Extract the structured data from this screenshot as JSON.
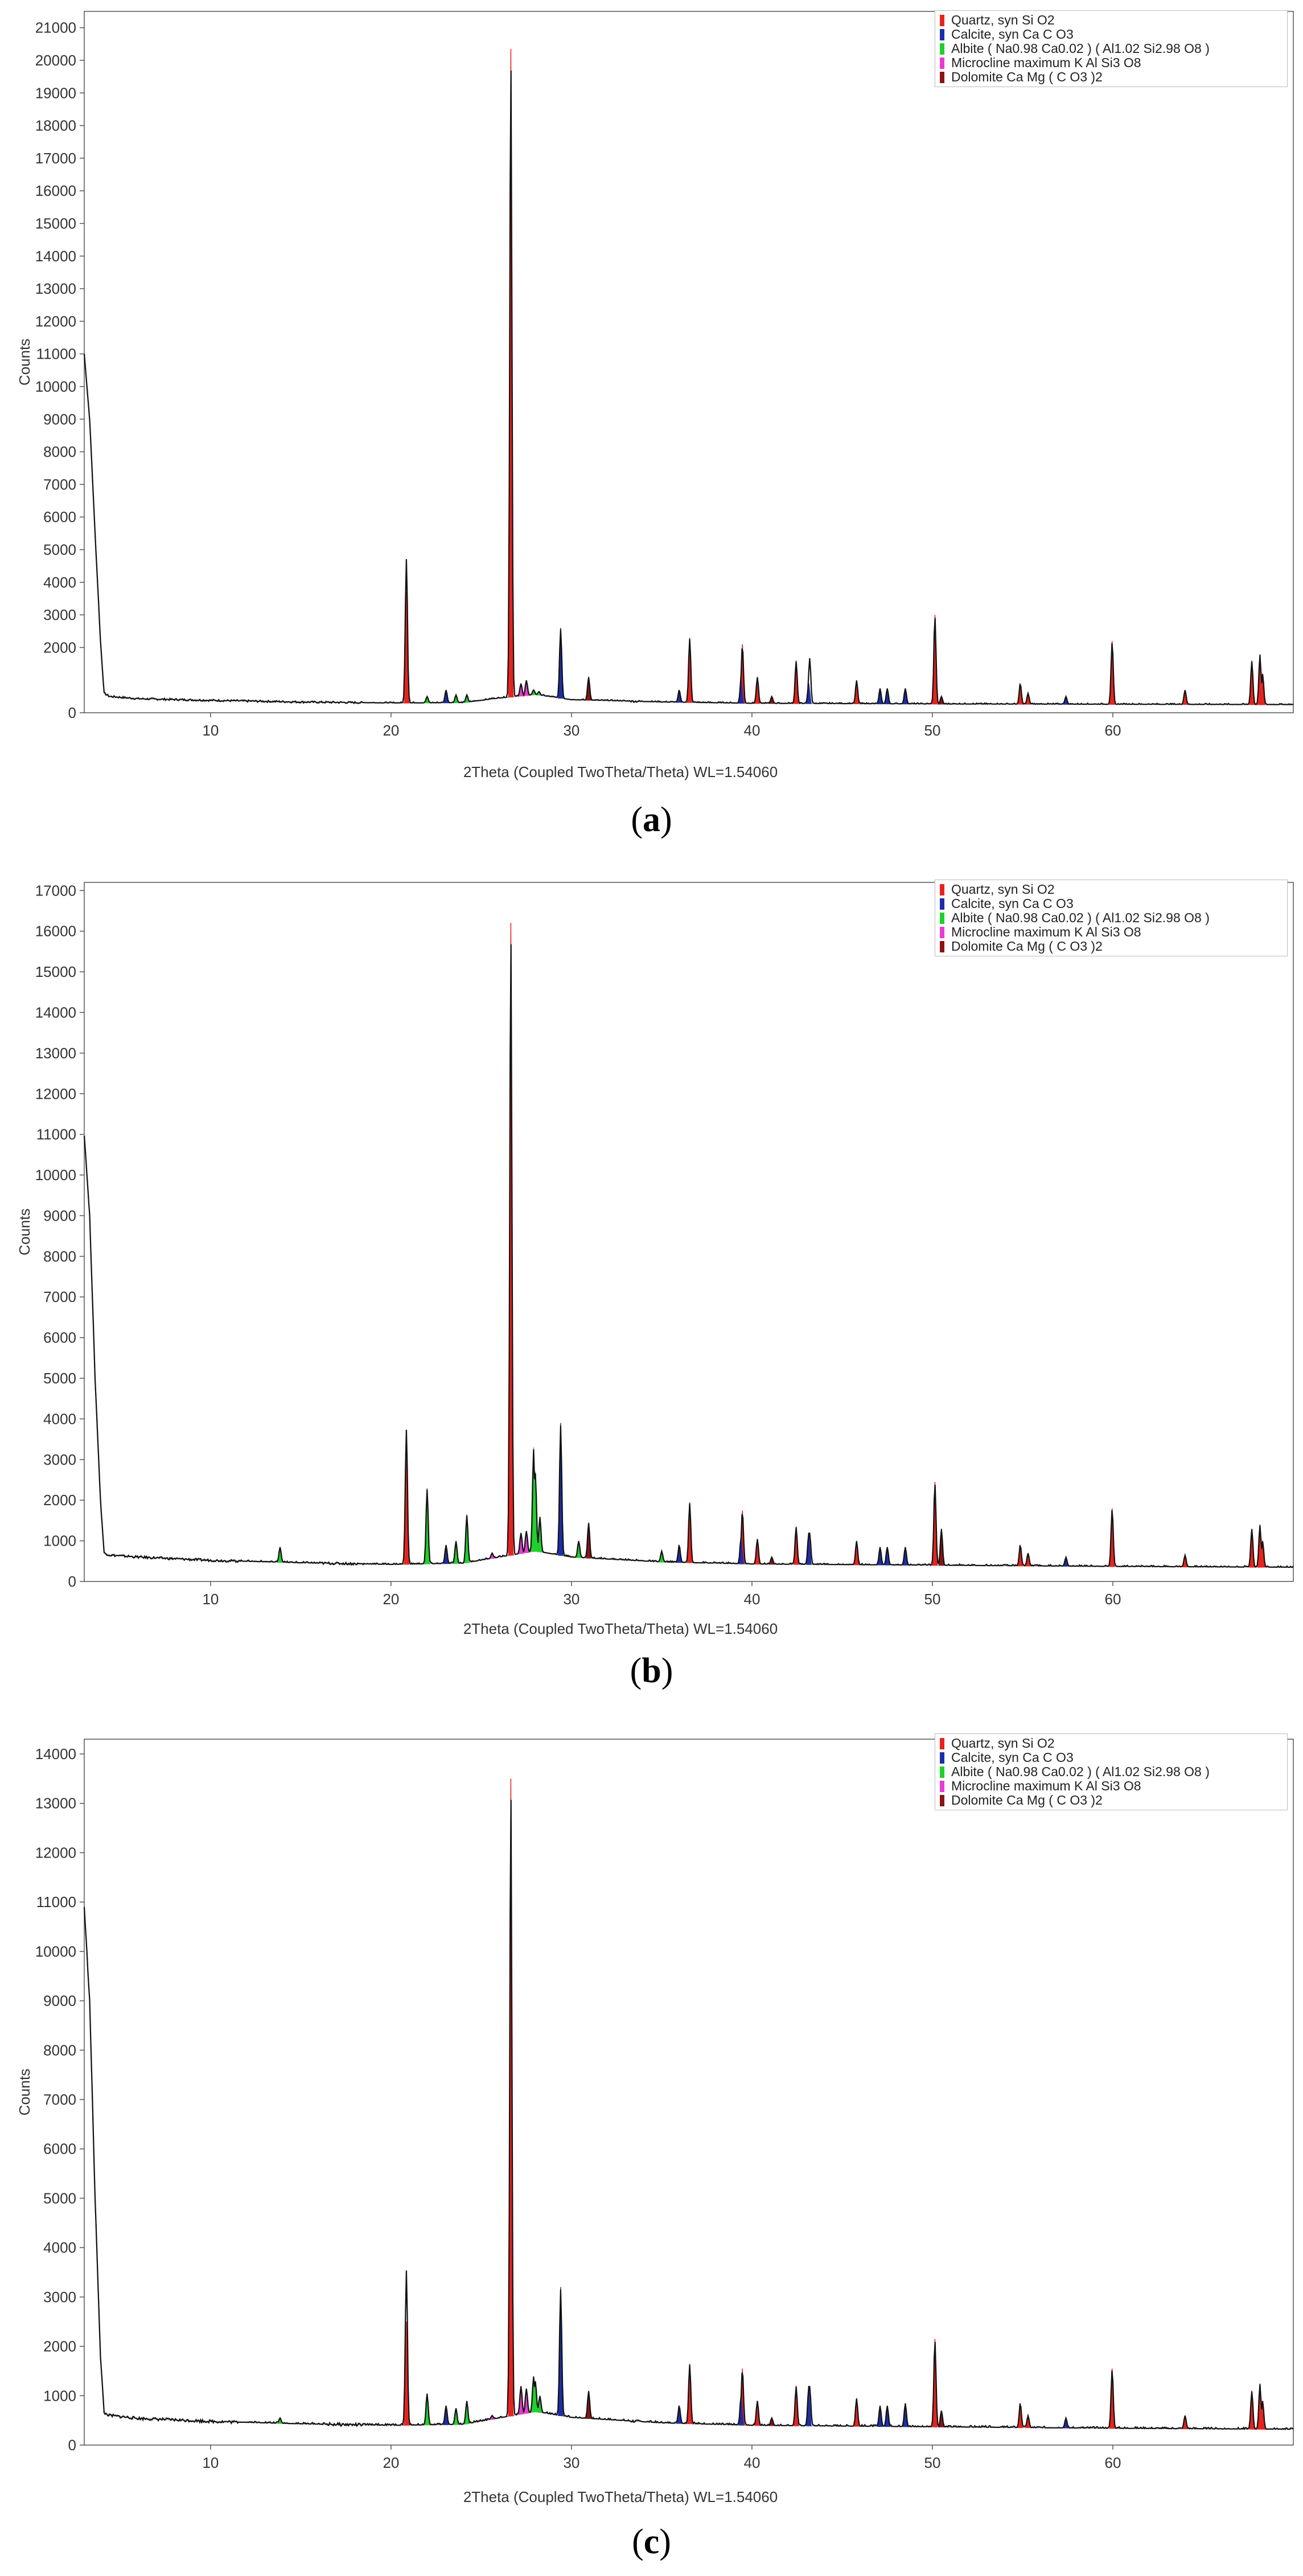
{
  "chart_data": [
    {
      "type": "line",
      "caption": "a",
      "xlabel": "2Theta (Coupled TwoTheta/Theta) WL=1.54060",
      "ylabel": "Counts",
      "xlim": [
        3,
        70
      ],
      "ylim": [
        0,
        21500
      ],
      "xticks": [
        10,
        20,
        30,
        40,
        50,
        60
      ],
      "yticks": [
        0,
        2000,
        3000,
        4000,
        5000,
        6000,
        7000,
        8000,
        9000,
        10000,
        11000,
        12000,
        13000,
        14000,
        15000,
        16000,
        17000,
        18000,
        19000,
        20000,
        21000
      ],
      "legend": {
        "position": "top-right",
        "entries": [
          {
            "name": "Quartz, syn  Si O2",
            "color": "#e8231f"
          },
          {
            "name": "Calcite, syn  Ca C O3",
            "color": "#1d2ea8"
          },
          {
            "name": "Albite  ( Na0.98 Ca0.02 ) ( Al1.02 Si2.98 O8 )",
            "color": "#1fd12c"
          },
          {
            "name": "Microcline maximum  K Al Si3 O8",
            "color": "#e83cd0"
          },
          {
            "name": "Dolomite  Ca Mg ( C O3 )2",
            "color": "#8b1414"
          }
        ]
      },
      "background": [
        [
          3,
          11000
        ],
        [
          3.3,
          9000
        ],
        [
          3.6,
          5500
        ],
        [
          3.9,
          2200
        ],
        [
          4.1,
          600
        ],
        [
          4.4,
          500
        ],
        [
          6,
          430
        ],
        [
          10,
          380
        ],
        [
          15,
          330
        ],
        [
          20,
          300
        ],
        [
          24,
          310
        ],
        [
          26,
          450
        ],
        [
          28,
          560
        ],
        [
          30,
          400
        ],
        [
          35,
          330
        ],
        [
          40,
          290
        ],
        [
          50,
          270
        ],
        [
          60,
          260
        ],
        [
          70,
          250
        ]
      ],
      "total": [
        [
          20.85,
          4800
        ],
        [
          26.64,
          20300
        ],
        [
          29.4,
          2600
        ],
        [
          43.2,
          1700
        ]
      ],
      "peaks": [
        {
          "phase": 0,
          "x": 20.86,
          "y": 3700
        },
        {
          "phase": 0,
          "x": 26.64,
          "y": 20350
        },
        {
          "phase": 0,
          "x": 36.55,
          "y": 2300
        },
        {
          "phase": 0,
          "x": 39.47,
          "y": 2100
        },
        {
          "phase": 0,
          "x": 40.3,
          "y": 1100
        },
        {
          "phase": 0,
          "x": 42.45,
          "y": 1600
        },
        {
          "phase": 0,
          "x": 45.8,
          "y": 1000
        },
        {
          "phase": 0,
          "x": 50.14,
          "y": 3000
        },
        {
          "phase": 0,
          "x": 54.87,
          "y": 900
        },
        {
          "phase": 0,
          "x": 55.3,
          "y": 600
        },
        {
          "phase": 0,
          "x": 59.96,
          "y": 2200
        },
        {
          "phase": 0,
          "x": 64.0,
          "y": 700
        },
        {
          "phase": 0,
          "x": 67.7,
          "y": 1600
        },
        {
          "phase": 0,
          "x": 68.15,
          "y": 1800
        },
        {
          "phase": 0,
          "x": 68.3,
          "y": 1200
        },
        {
          "phase": 1,
          "x": 23.05,
          "y": 700
        },
        {
          "phase": 1,
          "x": 29.4,
          "y": 2600
        },
        {
          "phase": 1,
          "x": 35.97,
          "y": 700
        },
        {
          "phase": 1,
          "x": 39.4,
          "y": 1000
        },
        {
          "phase": 1,
          "x": 43.15,
          "y": 900
        },
        {
          "phase": 1,
          "x": 47.1,
          "y": 750
        },
        {
          "phase": 1,
          "x": 47.5,
          "y": 750
        },
        {
          "phase": 1,
          "x": 48.5,
          "y": 750
        },
        {
          "phase": 1,
          "x": 57.4,
          "y": 500
        },
        {
          "phase": 2,
          "x": 22.0,
          "y": 500
        },
        {
          "phase": 2,
          "x": 23.6,
          "y": 550
        },
        {
          "phase": 2,
          "x": 24.2,
          "y": 550
        },
        {
          "phase": 2,
          "x": 27.9,
          "y": 700
        },
        {
          "phase": 2,
          "x": 28.2,
          "y": 650
        },
        {
          "phase": 3,
          "x": 25.6,
          "y": 450
        },
        {
          "phase": 3,
          "x": 27.2,
          "y": 900
        },
        {
          "phase": 3,
          "x": 27.5,
          "y": 1000
        },
        {
          "phase": 4,
          "x": 30.95,
          "y": 1100
        },
        {
          "phase": 4,
          "x": 41.1,
          "y": 500
        },
        {
          "phase": 4,
          "x": 50.5,
          "y": 500
        }
      ]
    },
    {
      "type": "line",
      "caption": "b",
      "xlabel": "2Theta (Coupled TwoTheta/Theta) WL=1.54060",
      "ylabel": "Counts",
      "xlim": [
        3,
        70
      ],
      "ylim": [
        0,
        17200
      ],
      "xticks": [
        10,
        20,
        30,
        40,
        50,
        60
      ],
      "yticks": [
        0,
        1000,
        2000,
        3000,
        4000,
        5000,
        6000,
        7000,
        8000,
        9000,
        10000,
        11000,
        12000,
        13000,
        14000,
        15000,
        16000,
        17000
      ],
      "legend": {
        "position": "top-right",
        "entries": [
          {
            "name": "Quartz, syn  Si O2",
            "color": "#e8231f"
          },
          {
            "name": "Calcite, syn  Ca C O3",
            "color": "#1d2ea8"
          },
          {
            "name": "Albite  ( Na0.98 Ca0.02 ) ( Al1.02 Si2.98 O8 )",
            "color": "#1fd12c"
          },
          {
            "name": "Microcline maximum  K Al Si3 O8",
            "color": "#e83cd0"
          },
          {
            "name": "Dolomite  Ca Mg ( C O3 )2",
            "color": "#8b1414"
          }
        ]
      },
      "background": [
        [
          3,
          11000
        ],
        [
          3.3,
          9000
        ],
        [
          3.6,
          5000
        ],
        [
          3.9,
          2000
        ],
        [
          4.1,
          700
        ],
        [
          4.4,
          650
        ],
        [
          6,
          600
        ],
        [
          10,
          520
        ],
        [
          15,
          460
        ],
        [
          20,
          420
        ],
        [
          24,
          450
        ],
        [
          26,
          600
        ],
        [
          28,
          750
        ],
        [
          30,
          600
        ],
        [
          35,
          480
        ],
        [
          40,
          430
        ],
        [
          50,
          400
        ],
        [
          60,
          370
        ],
        [
          70,
          350
        ]
      ],
      "total": [
        [
          20.85,
          3800
        ],
        [
          26.64,
          16200
        ],
        [
          29.4,
          3900
        ],
        [
          43.2,
          1200
        ]
      ],
      "peaks": [
        {
          "phase": 0,
          "x": 20.86,
          "y": 3000
        },
        {
          "phase": 0,
          "x": 26.64,
          "y": 16200
        },
        {
          "phase": 0,
          "x": 36.55,
          "y": 1950
        },
        {
          "phase": 0,
          "x": 39.47,
          "y": 1750
        },
        {
          "phase": 0,
          "x": 40.3,
          "y": 1050
        },
        {
          "phase": 0,
          "x": 42.45,
          "y": 1350
        },
        {
          "phase": 0,
          "x": 45.8,
          "y": 1000
        },
        {
          "phase": 0,
          "x": 50.14,
          "y": 2450
        },
        {
          "phase": 0,
          "x": 54.87,
          "y": 900
        },
        {
          "phase": 0,
          "x": 55.3,
          "y": 700
        },
        {
          "phase": 0,
          "x": 59.96,
          "y": 1800
        },
        {
          "phase": 0,
          "x": 64.0,
          "y": 650
        },
        {
          "phase": 0,
          "x": 67.7,
          "y": 1300
        },
        {
          "phase": 0,
          "x": 68.15,
          "y": 1400
        },
        {
          "phase": 0,
          "x": 68.3,
          "y": 1000
        },
        {
          "phase": 1,
          "x": 23.05,
          "y": 900
        },
        {
          "phase": 1,
          "x": 29.4,
          "y": 3900
        },
        {
          "phase": 1,
          "x": 35.97,
          "y": 900
        },
        {
          "phase": 1,
          "x": 39.4,
          "y": 1100
        },
        {
          "phase": 1,
          "x": 43.15,
          "y": 1200
        },
        {
          "phase": 1,
          "x": 47.1,
          "y": 850
        },
        {
          "phase": 1,
          "x": 47.5,
          "y": 850
        },
        {
          "phase": 1,
          "x": 48.5,
          "y": 850
        },
        {
          "phase": 1,
          "x": 57.4,
          "y": 600
        },
        {
          "phase": 2,
          "x": 13.85,
          "y": 850
        },
        {
          "phase": 2,
          "x": 22.0,
          "y": 2300
        },
        {
          "phase": 2,
          "x": 23.6,
          "y": 1000
        },
        {
          "phase": 2,
          "x": 24.2,
          "y": 1650
        },
        {
          "phase": 2,
          "x": 27.9,
          "y": 3300
        },
        {
          "phase": 2,
          "x": 28.0,
          "y": 2700
        },
        {
          "phase": 2,
          "x": 28.25,
          "y": 1600
        },
        {
          "phase": 2,
          "x": 30.4,
          "y": 1000
        },
        {
          "phase": 2,
          "x": 35.0,
          "y": 750
        },
        {
          "phase": 3,
          "x": 25.6,
          "y": 700
        },
        {
          "phase": 3,
          "x": 27.2,
          "y": 1200
        },
        {
          "phase": 3,
          "x": 27.5,
          "y": 1250
        },
        {
          "phase": 4,
          "x": 30.95,
          "y": 1450
        },
        {
          "phase": 4,
          "x": 41.1,
          "y": 600
        },
        {
          "phase": 4,
          "x": 50.5,
          "y": 1300
        }
      ]
    },
    {
      "type": "line",
      "caption": "c",
      "xlabel": "2Theta (Coupled TwoTheta/Theta) WL=1.54060",
      "ylabel": "Counts",
      "xlim": [
        3,
        70
      ],
      "ylim": [
        0,
        14300
      ],
      "xticks": [
        10,
        20,
        30,
        40,
        50,
        60
      ],
      "yticks": [
        0,
        1000,
        2000,
        3000,
        4000,
        5000,
        6000,
        7000,
        8000,
        9000,
        10000,
        11000,
        12000,
        13000,
        14000
      ],
      "legend": {
        "position": "top-right",
        "entries": [
          {
            "name": "Quartz, syn  Si O2",
            "color": "#e8231f"
          },
          {
            "name": "Calcite, syn  Ca C O3",
            "color": "#1d2ea8"
          },
          {
            "name": "Albite  ( Na0.98 Ca0.02 ) ( Al1.02 Si2.98 O8 )",
            "color": "#1fd12c"
          },
          {
            "name": "Microcline maximum  K Al Si3 O8",
            "color": "#e83cd0"
          },
          {
            "name": "Dolomite  Ca Mg ( C O3 )2",
            "color": "#8b1414"
          }
        ]
      },
      "background": [
        [
          3,
          10900
        ],
        [
          3.3,
          9000
        ],
        [
          3.6,
          5000
        ],
        [
          3.9,
          1800
        ],
        [
          4.1,
          650
        ],
        [
          4.4,
          600
        ],
        [
          6,
          540
        ],
        [
          10,
          480
        ],
        [
          15,
          430
        ],
        [
          20,
          400
        ],
        [
          24,
          420
        ],
        [
          26,
          550
        ],
        [
          28,
          680
        ],
        [
          30,
          560
        ],
        [
          35,
          450
        ],
        [
          40,
          400
        ],
        [
          50,
          370
        ],
        [
          60,
          340
        ],
        [
          70,
          320
        ]
      ],
      "total": [
        [
          20.85,
          3600
        ],
        [
          26.64,
          13500
        ],
        [
          29.4,
          3200
        ],
        [
          43.2,
          1200
        ]
      ],
      "peaks": [
        {
          "phase": 0,
          "x": 20.86,
          "y": 2500
        },
        {
          "phase": 0,
          "x": 26.64,
          "y": 13500
        },
        {
          "phase": 0,
          "x": 36.55,
          "y": 1650
        },
        {
          "phase": 0,
          "x": 39.47,
          "y": 1550
        },
        {
          "phase": 0,
          "x": 40.3,
          "y": 900
        },
        {
          "phase": 0,
          "x": 42.45,
          "y": 1200
        },
        {
          "phase": 0,
          "x": 45.8,
          "y": 950
        },
        {
          "phase": 0,
          "x": 50.14,
          "y": 2150
        },
        {
          "phase": 0,
          "x": 54.87,
          "y": 850
        },
        {
          "phase": 0,
          "x": 55.3,
          "y": 600
        },
        {
          "phase": 0,
          "x": 59.96,
          "y": 1550
        },
        {
          "phase": 0,
          "x": 64.0,
          "y": 600
        },
        {
          "phase": 0,
          "x": 67.7,
          "y": 1100
        },
        {
          "phase": 0,
          "x": 68.15,
          "y": 1250
        },
        {
          "phase": 0,
          "x": 68.3,
          "y": 900
        },
        {
          "phase": 1,
          "x": 23.05,
          "y": 800
        },
        {
          "phase": 1,
          "x": 29.4,
          "y": 3200
        },
        {
          "phase": 1,
          "x": 35.97,
          "y": 800
        },
        {
          "phase": 1,
          "x": 39.4,
          "y": 1000
        },
        {
          "phase": 1,
          "x": 43.15,
          "y": 1200
        },
        {
          "phase": 1,
          "x": 47.1,
          "y": 800
        },
        {
          "phase": 1,
          "x": 47.5,
          "y": 800
        },
        {
          "phase": 1,
          "x": 48.5,
          "y": 850
        },
        {
          "phase": 1,
          "x": 57.4,
          "y": 550
        },
        {
          "phase": 2,
          "x": 13.85,
          "y": 550
        },
        {
          "phase": 2,
          "x": 22.0,
          "y": 1050
        },
        {
          "phase": 2,
          "x": 23.6,
          "y": 750
        },
        {
          "phase": 2,
          "x": 24.2,
          "y": 900
        },
        {
          "phase": 2,
          "x": 27.9,
          "y": 1400
        },
        {
          "phase": 2,
          "x": 28.0,
          "y": 1300
        },
        {
          "phase": 2,
          "x": 28.25,
          "y": 1000
        },
        {
          "phase": 3,
          "x": 25.6,
          "y": 600
        },
        {
          "phase": 3,
          "x": 27.2,
          "y": 1200
        },
        {
          "phase": 3,
          "x": 27.5,
          "y": 1150
        },
        {
          "phase": 4,
          "x": 30.95,
          "y": 1100
        },
        {
          "phase": 4,
          "x": 41.1,
          "y": 550
        },
        {
          "phase": 4,
          "x": 50.5,
          "y": 700
        }
      ]
    }
  ]
}
